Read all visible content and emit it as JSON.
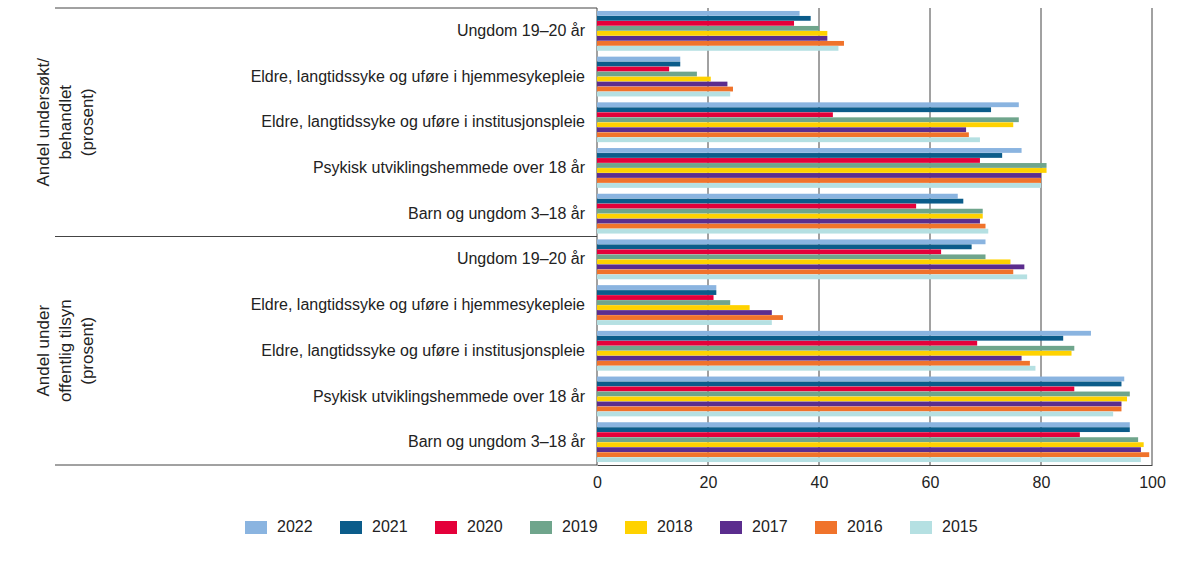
{
  "chart_data": {
    "type": "bar",
    "orientation": "horizontal",
    "grid": true,
    "legend": "bottom",
    "group_labels": [
      [
        "Andel undersøkt/",
        "behandlet",
        "(prosent)"
      ],
      [
        "Andel under",
        "offentlig tilsyn",
        "(prosent)"
      ]
    ],
    "categories": [
      "Ungdom 19–20 år",
      "Eldre, langtidssyke og uføre i hjemmesykepleie",
      "Eldre, langtidssyke og uføre i institusjonspleie",
      "Psykisk utviklingshemmede over 18 år",
      "Barn og ungdom 3–18 år",
      "Ungdom 19–20 år",
      "Eldre, langtidssyke og uføre i hjemmesykepleie",
      "Eldre, langtidssyke og uføre i institusjonspleie",
      "Psykisk utviklingshemmede over 18 år",
      "Barn og ungdom 3–18 år"
    ],
    "series": [
      {
        "name": "2022",
        "color": "#8ab4e0",
        "values": [
          36.5,
          15,
          76,
          76.5,
          65,
          70,
          21.5,
          89,
          95,
          96
        ]
      },
      {
        "name": "2021",
        "color": "#0b5c8a",
        "values": [
          38.5,
          15,
          71,
          73,
          66,
          67.5,
          21.5,
          84,
          94.5,
          96
        ]
      },
      {
        "name": "2020",
        "color": "#e4003a",
        "values": [
          35.5,
          13,
          42.5,
          69,
          57.5,
          62,
          21,
          68.5,
          86,
          87
        ]
      },
      {
        "name": "2019",
        "color": "#6fa58c",
        "values": [
          40,
          18,
          76,
          81,
          69.5,
          70,
          24,
          86,
          96,
          97.5
        ]
      },
      {
        "name": "2018",
        "color": "#ffd200",
        "values": [
          41.5,
          20.5,
          75,
          81,
          69.5,
          74.5,
          27.5,
          85.5,
          95.5,
          98.5
        ]
      },
      {
        "name": "2017",
        "color": "#5b2d8e",
        "values": [
          41.5,
          23.5,
          66.5,
          80,
          69,
          77,
          31.5,
          76.5,
          94.5,
          98
        ]
      },
      {
        "name": "2016",
        "color": "#f0732b",
        "values": [
          44.5,
          24.5,
          67,
          80,
          70,
          75,
          33.5,
          78,
          94.5,
          99.5
        ]
      },
      {
        "name": "2015",
        "color": "#b5e0e2",
        "values": [
          43.5,
          24,
          69,
          80,
          70.5,
          77.5,
          31.5,
          79,
          93,
          98
        ]
      }
    ],
    "xlim": [
      0,
      100
    ],
    "xticks": [
      0,
      20,
      40,
      60,
      80,
      100
    ]
  }
}
